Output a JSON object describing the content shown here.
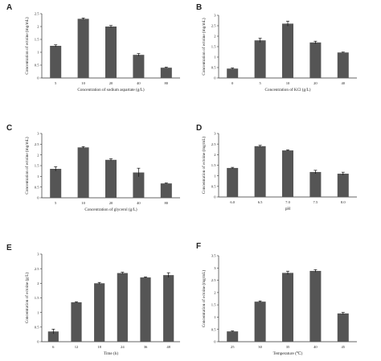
{
  "colors": {
    "bar": "#555555",
    "axis": "#333333",
    "text": "#222222",
    "background": "#ffffff"
  },
  "chart_data": [
    {
      "panel": "A",
      "type": "bar",
      "categories": [
        "5",
        "10",
        "20",
        "40",
        "80"
      ],
      "values": [
        1.25,
        2.3,
        2.0,
        0.9,
        0.4
      ],
      "errors": [
        0.04,
        0.03,
        0.04,
        0.05,
        0.02
      ],
      "xlabel": "Concentration of sodium aspartate (g/L)",
      "ylabel": "Concentration of ectoine (mg/mL)",
      "ylim": [
        0,
        2.5
      ],
      "yticks": [
        "0",
        "0.5",
        "1",
        "1.5",
        "2",
        "2.5"
      ],
      "grid": false
    },
    {
      "panel": "B",
      "type": "bar",
      "categories": [
        "0",
        "5",
        "10",
        "20",
        "40"
      ],
      "values": [
        0.45,
        1.8,
        2.6,
        1.7,
        1.22
      ],
      "errors": [
        0.03,
        0.1,
        0.12,
        0.06,
        0.02
      ],
      "xlabel": "Concentration of KCl (g/L)",
      "ylabel": "Concentration of ectoine (mg/mL)",
      "ylim": [
        0,
        3
      ],
      "yticks": [
        "0",
        "0.5",
        "1",
        "1.5",
        "2",
        "2.5",
        "3"
      ],
      "grid": false
    },
    {
      "panel": "C",
      "type": "bar",
      "categories": [
        "5",
        "10",
        "20",
        "40",
        "80"
      ],
      "values": [
        1.35,
        2.35,
        1.77,
        1.18,
        0.67
      ],
      "errors": [
        0.1,
        0.04,
        0.05,
        0.2,
        0.02
      ],
      "xlabel": "Concentration of glycerol (g/L)",
      "ylabel": "Concentration of ectoine (mg/mL)",
      "ylim": [
        0,
        3
      ],
      "yticks": [
        "0",
        "0.5",
        "1",
        "1.5",
        "2",
        "2.5",
        "3"
      ],
      "grid": false
    },
    {
      "panel": "D",
      "type": "bar",
      "categories": [
        "6.0",
        "6.5",
        "7.0",
        "7.5",
        "8.0"
      ],
      "values": [
        1.37,
        2.4,
        2.2,
        1.18,
        1.1
      ],
      "errors": [
        0.03,
        0.04,
        0.03,
        0.08,
        0.07
      ],
      "xlabel": "pH",
      "ylabel": "Concentration of ectoine (mg/mL)",
      "ylim": [
        0,
        3
      ],
      "yticks": [
        "0",
        "0.5",
        "1",
        "1.5",
        "2",
        "2.5",
        "3"
      ],
      "grid": false
    },
    {
      "panel": "E",
      "type": "bar",
      "categories": [
        "6",
        "12",
        "18",
        "24",
        "36",
        "48"
      ],
      "values": [
        0.35,
        1.35,
        2.0,
        2.35,
        2.2,
        2.28
      ],
      "errors": [
        0.08,
        0.02,
        0.03,
        0.03,
        0.02,
        0.08
      ],
      "xlabel": "Time (h)",
      "ylabel": "Concentration of ectoine (g/L)",
      "ylim": [
        0,
        3
      ],
      "yticks": [
        "0",
        "0.5",
        "1",
        "1.5",
        "2",
        "2.5",
        "3"
      ],
      "grid": false
    },
    {
      "panel": "F",
      "type": "bar",
      "categories": [
        "25",
        "30",
        "35",
        "40",
        "45"
      ],
      "values": [
        0.42,
        1.63,
        2.8,
        2.88,
        1.15
      ],
      "errors": [
        0.02,
        0.03,
        0.07,
        0.05,
        0.04
      ],
      "xlabel": "Temperature (℃)",
      "ylabel": "Concentration of ectoine (mg/mL)",
      "ylim": [
        0,
        3.5
      ],
      "yticks": [
        "0",
        "0.5",
        "1",
        "1.5",
        "2",
        "2.5",
        "3",
        "3.5"
      ],
      "grid": false
    }
  ]
}
